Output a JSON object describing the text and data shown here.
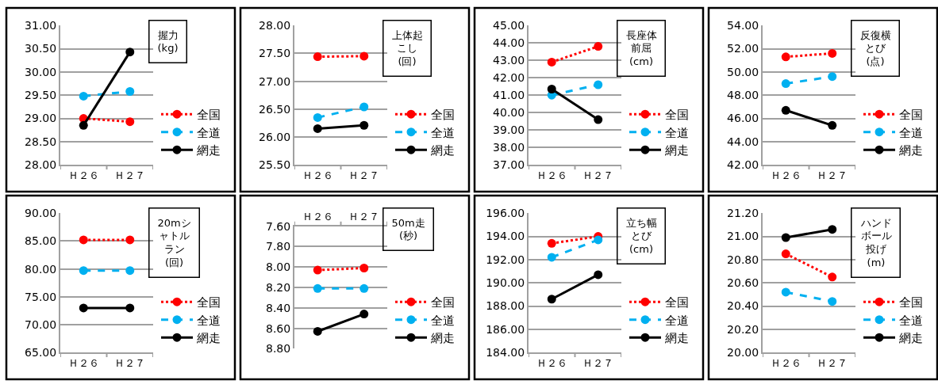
{
  "chart_data": [
    {
      "type": "line",
      "title": "握力(kg)",
      "categories": [
        "Ｈ２６",
        "Ｈ２７"
      ],
      "ylim": [
        28,
        31
      ],
      "yticks": [
        {
          "value": 28,
          "label": "28.00"
        },
        {
          "value": 28.5,
          "label": "28.50"
        },
        {
          "value": 29,
          "label": "29.00"
        },
        {
          "value": 29.5,
          "label": "29.50"
        },
        {
          "value": 30,
          "label": "30.00"
        },
        {
          "value": 30.5,
          "label": "30.50"
        },
        {
          "value": 31,
          "label": "31.00"
        }
      ],
      "grid": "y",
      "legend": "right",
      "marker": "circle",
      "series": [
        {
          "name": "全国",
          "color": "#ff0000",
          "line_style": "dotted",
          "values": [
            29.0,
            28.93
          ]
        },
        {
          "name": "全道",
          "color": "#00b0f0",
          "line_style": "dashed",
          "values": [
            29.48,
            29.58
          ]
        },
        {
          "name": "網走",
          "color": "#000000",
          "line_style": "solid",
          "values": [
            28.85,
            30.43
          ]
        }
      ]
    },
    {
      "type": "line",
      "title": "上体起こし(回)",
      "categories": [
        "Ｈ２６",
        "Ｈ２７"
      ],
      "ylim": [
        25.5,
        28
      ],
      "yticks": [
        {
          "value": 25.5,
          "label": "25.50"
        },
        {
          "value": 26,
          "label": "26.00"
        },
        {
          "value": 26.5,
          "label": "26.50"
        },
        {
          "value": 27,
          "label": "27.00"
        },
        {
          "value": 27.5,
          "label": "27.50"
        },
        {
          "value": 28,
          "label": "28.00"
        }
      ],
      "grid": "y",
      "legend": "right",
      "marker": "circle",
      "series": [
        {
          "name": "全国",
          "color": "#ff0000",
          "line_style": "dotted",
          "values": [
            27.44,
            27.45
          ]
        },
        {
          "name": "全道",
          "color": "#00b0f0",
          "line_style": "dashed",
          "values": [
            26.35,
            26.54
          ]
        },
        {
          "name": "網走",
          "color": "#000000",
          "line_style": "solid",
          "values": [
            26.15,
            26.21
          ]
        }
      ]
    },
    {
      "type": "line",
      "title": "長座体前屈(cm)",
      "categories": [
        "Ｈ２６",
        "Ｈ２７"
      ],
      "ylim": [
        37,
        45
      ],
      "yticks": [
        {
          "value": 37,
          "label": "37.00"
        },
        {
          "value": 38,
          "label": "38.00"
        },
        {
          "value": 39,
          "label": "39.00"
        },
        {
          "value": 40,
          "label": "40.00"
        },
        {
          "value": 41,
          "label": "41.00"
        },
        {
          "value": 42,
          "label": "42.00"
        },
        {
          "value": 43,
          "label": "43.00"
        },
        {
          "value": 44,
          "label": "44.00"
        },
        {
          "value": 45,
          "label": "45.00"
        }
      ],
      "grid": "y",
      "legend": "right",
      "marker": "circle",
      "series": [
        {
          "name": "全国",
          "color": "#ff0000",
          "line_style": "dotted",
          "values": [
            42.9,
            43.8
          ]
        },
        {
          "name": "全道",
          "color": "#00b0f0",
          "line_style": "dashed",
          "values": [
            41.0,
            41.6
          ]
        },
        {
          "name": "網走",
          "color": "#000000",
          "line_style": "solid",
          "values": [
            41.35,
            39.6
          ]
        }
      ]
    },
    {
      "type": "line",
      "title": "反復横とび(点)",
      "categories": [
        "Ｈ２６",
        "Ｈ２７"
      ],
      "ylim": [
        42,
        54
      ],
      "yticks": [
        {
          "value": 42,
          "label": "42.00"
        },
        {
          "value": 44,
          "label": "44.00"
        },
        {
          "value": 46,
          "label": "46.00"
        },
        {
          "value": 48,
          "label": "48.00"
        },
        {
          "value": 50,
          "label": "50.00"
        },
        {
          "value": 52,
          "label": "52.00"
        },
        {
          "value": 54,
          "label": "54.00"
        }
      ],
      "grid": "y",
      "legend": "right",
      "marker": "circle",
      "series": [
        {
          "name": "全国",
          "color": "#ff0000",
          "line_style": "dotted",
          "values": [
            51.3,
            51.6
          ]
        },
        {
          "name": "全道",
          "color": "#00b0f0",
          "line_style": "dashed",
          "values": [
            49.0,
            49.6
          ]
        },
        {
          "name": "網走",
          "color": "#000000",
          "line_style": "solid",
          "values": [
            46.7,
            45.4
          ]
        }
      ]
    },
    {
      "type": "line",
      "title": "20mシャトルラン(回)",
      "categories": [
        "Ｈ２６",
        "Ｈ２７"
      ],
      "ylim": [
        65,
        90
      ],
      "yticks": [
        {
          "value": 65,
          "label": "65.00"
        },
        {
          "value": 70,
          "label": "70.00"
        },
        {
          "value": 75,
          "label": "75.00"
        },
        {
          "value": 80,
          "label": "80.00"
        },
        {
          "value": 85,
          "label": "85.00"
        },
        {
          "value": 90,
          "label": "90.00"
        }
      ],
      "grid": "y",
      "legend": "right",
      "marker": "circle",
      "series": [
        {
          "name": "全国",
          "color": "#ff0000",
          "line_style": "dotted",
          "values": [
            85.2,
            85.2
          ]
        },
        {
          "name": "全道",
          "color": "#00b0f0",
          "line_style": "dashed",
          "values": [
            79.7,
            79.7
          ]
        },
        {
          "name": "網走",
          "color": "#000000",
          "line_style": "solid",
          "values": [
            73.0,
            73.0
          ]
        }
      ]
    },
    {
      "type": "line",
      "title": "50m走(秒)",
      "categories": [
        "Ｈ２６",
        "Ｈ２７"
      ],
      "ylim": [
        8.8,
        7.6
      ],
      "yticks": [
        {
          "value": 7.6,
          "label": "7.60"
        },
        {
          "value": 7.8,
          "label": "7.80"
        },
        {
          "value": 8.0,
          "label": "8.00"
        },
        {
          "value": 8.2,
          "label": "8.20"
        },
        {
          "value": 8.4,
          "label": "8.40"
        },
        {
          "value": 8.6,
          "label": "8.60"
        },
        {
          "value": 8.8,
          "label": "8.80"
        }
      ],
      "grid": "y",
      "legend": "right",
      "marker": "circle",
      "series": [
        {
          "name": "全国",
          "color": "#ff0000",
          "line_style": "dotted",
          "values": [
            8.03,
            8.01
          ]
        },
        {
          "name": "全道",
          "color": "#00b0f0",
          "line_style": "dashed",
          "values": [
            8.21,
            8.21
          ]
        },
        {
          "name": "網走",
          "color": "#000000",
          "line_style": "solid",
          "values": [
            8.63,
            8.46
          ]
        }
      ]
    },
    {
      "type": "line",
      "title": "立ち幅とび(cm)",
      "categories": [
        "Ｈ２６",
        "Ｈ２７"
      ],
      "ylim": [
        184,
        196
      ],
      "yticks": [
        {
          "value": 184,
          "label": "184.00"
        },
        {
          "value": 186,
          "label": "186.00"
        },
        {
          "value": 188,
          "label": "188.00"
        },
        {
          "value": 190,
          "label": "190.00"
        },
        {
          "value": 192,
          "label": "192.00"
        },
        {
          "value": 194,
          "label": "194.00"
        },
        {
          "value": 196,
          "label": "196.00"
        }
      ],
      "grid": "y",
      "legend": "right",
      "marker": "circle",
      "series": [
        {
          "name": "全国",
          "color": "#ff0000",
          "line_style": "dotted",
          "values": [
            193.4,
            194.0
          ]
        },
        {
          "name": "全道",
          "color": "#00b0f0",
          "line_style": "dashed",
          "values": [
            192.2,
            193.7
          ]
        },
        {
          "name": "網走",
          "color": "#000000",
          "line_style": "solid",
          "values": [
            188.6,
            190.7
          ]
        }
      ]
    },
    {
      "type": "line",
      "title": "ハンドボール投げ(m)",
      "categories": [
        "Ｈ２６",
        "Ｈ２７"
      ],
      "ylim": [
        20,
        21.2
      ],
      "yticks": [
        {
          "value": 20,
          "label": "20.00"
        },
        {
          "value": 20.2,
          "label": "20.20"
        },
        {
          "value": 20.4,
          "label": "20.40"
        },
        {
          "value": 20.6,
          "label": "20.60"
        },
        {
          "value": 20.8,
          "label": "20.80"
        },
        {
          "value": 21.0,
          "label": "21.00"
        },
        {
          "value": 21.2,
          "label": "21.20"
        }
      ],
      "grid": "y",
      "legend": "right",
      "marker": "circle",
      "series": [
        {
          "name": "全国",
          "color": "#ff0000",
          "line_style": "dotted",
          "values": [
            20.85,
            20.65
          ]
        },
        {
          "name": "全道",
          "color": "#00b0f0",
          "line_style": "dashed",
          "values": [
            20.52,
            20.44
          ]
        },
        {
          "name": "網走",
          "color": "#000000",
          "line_style": "solid",
          "values": [
            20.99,
            21.06
          ]
        }
      ]
    }
  ]
}
